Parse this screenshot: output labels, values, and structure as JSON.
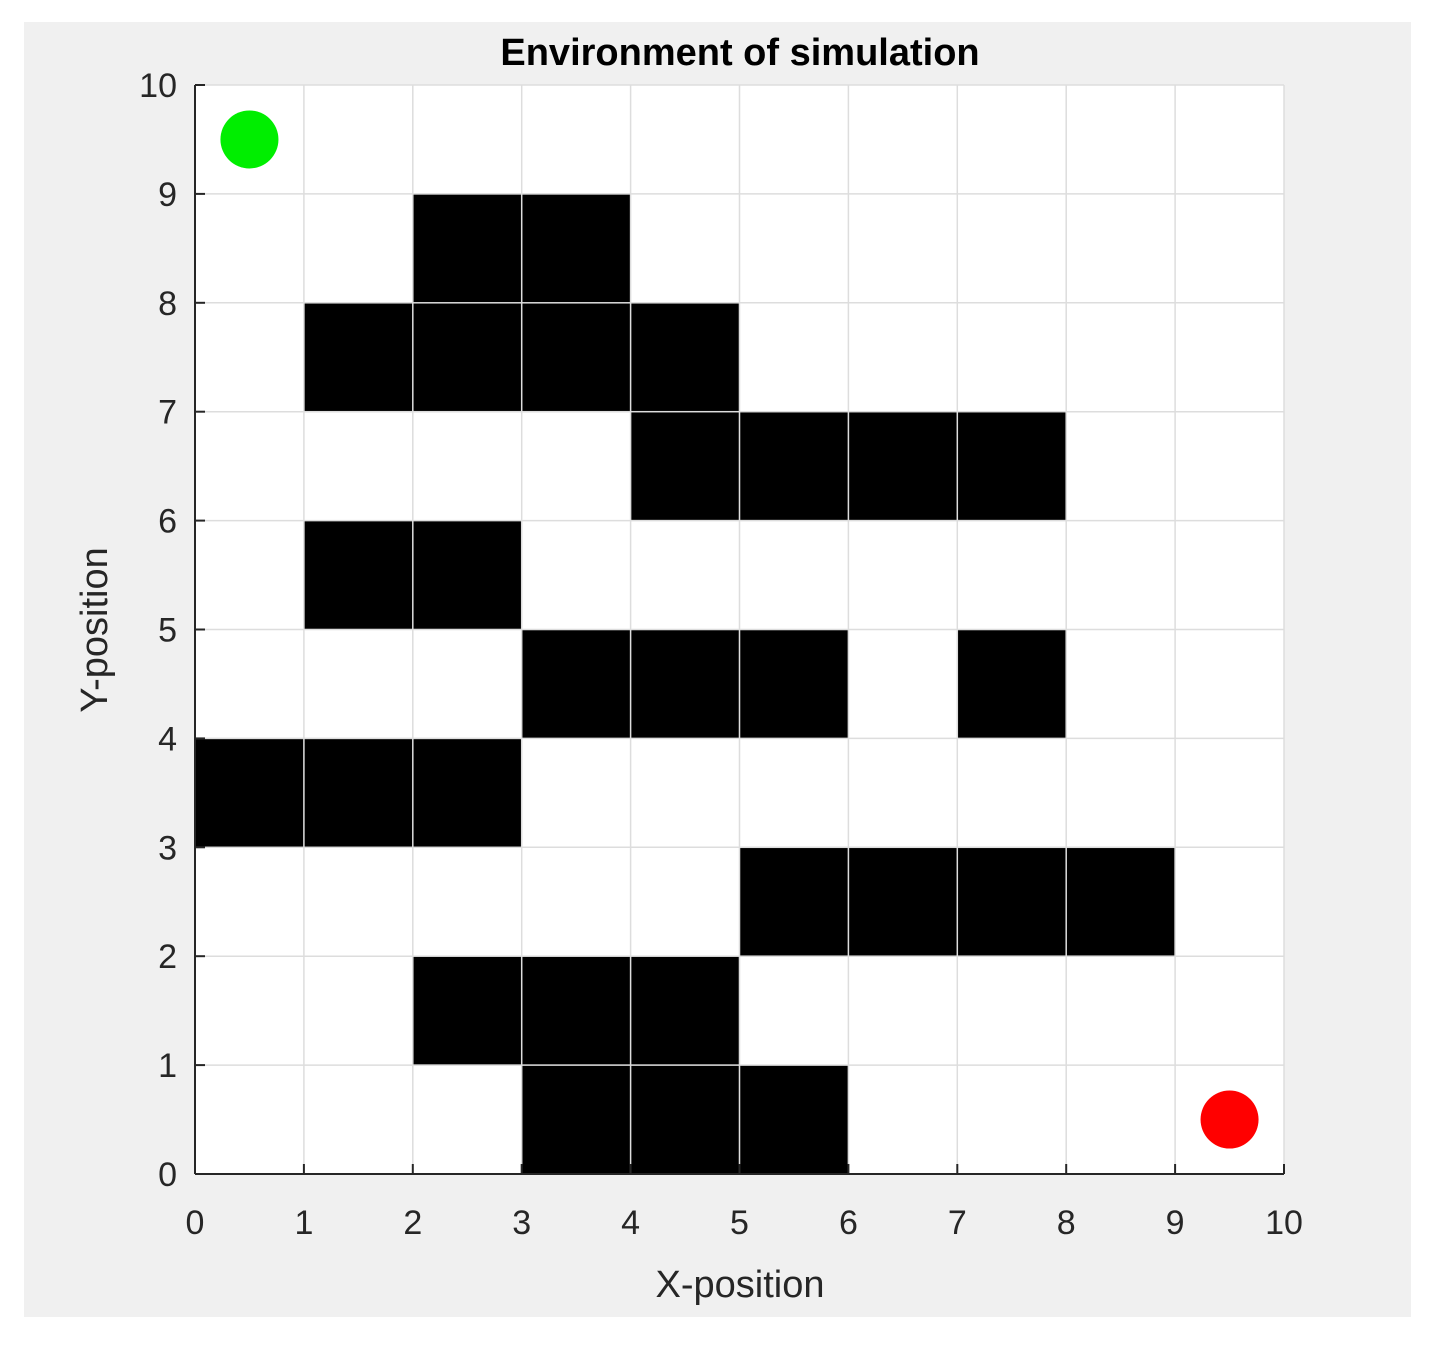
{
  "chart_data": {
    "type": "scatter",
    "title": "Environment of simulation",
    "xlabel": "X-position",
    "ylabel": "Y-position",
    "xlim": [
      0,
      10
    ],
    "ylim": [
      0,
      10
    ],
    "grid": true,
    "x_ticks": [
      "0",
      "1",
      "2",
      "3",
      "4",
      "5",
      "6",
      "7",
      "8",
      "9",
      "10"
    ],
    "y_ticks": [
      "0",
      "1",
      "2",
      "3",
      "4",
      "5",
      "6",
      "7",
      "8",
      "9",
      "10"
    ],
    "obstacles": [
      [
        2,
        8
      ],
      [
        3,
        8
      ],
      [
        1,
        7
      ],
      [
        2,
        7
      ],
      [
        3,
        7
      ],
      [
        4,
        7
      ],
      [
        4,
        6
      ],
      [
        5,
        6
      ],
      [
        6,
        6
      ],
      [
        7,
        6
      ],
      [
        1,
        5
      ],
      [
        2,
        5
      ],
      [
        3,
        4
      ],
      [
        4,
        4
      ],
      [
        5,
        4
      ],
      [
        7,
        4
      ],
      [
        0,
        3
      ],
      [
        1,
        3
      ],
      [
        2,
        3
      ],
      [
        5,
        2
      ],
      [
        6,
        2
      ],
      [
        7,
        2
      ],
      [
        8,
        2
      ],
      [
        2,
        1
      ],
      [
        3,
        1
      ],
      [
        4,
        1
      ],
      [
        3,
        0
      ],
      [
        4,
        0
      ],
      [
        5,
        0
      ]
    ],
    "points": [
      {
        "x": 0.5,
        "y": 9.5,
        "color": "#00ee00"
      },
      {
        "x": 9.5,
        "y": 0.5,
        "color": "#ff0000"
      }
    ],
    "colors": {
      "obstacle": "#000000",
      "grid": "#dddddd",
      "axes_bg": "#ffffff",
      "figure_bg": "#f0f0f0"
    }
  }
}
